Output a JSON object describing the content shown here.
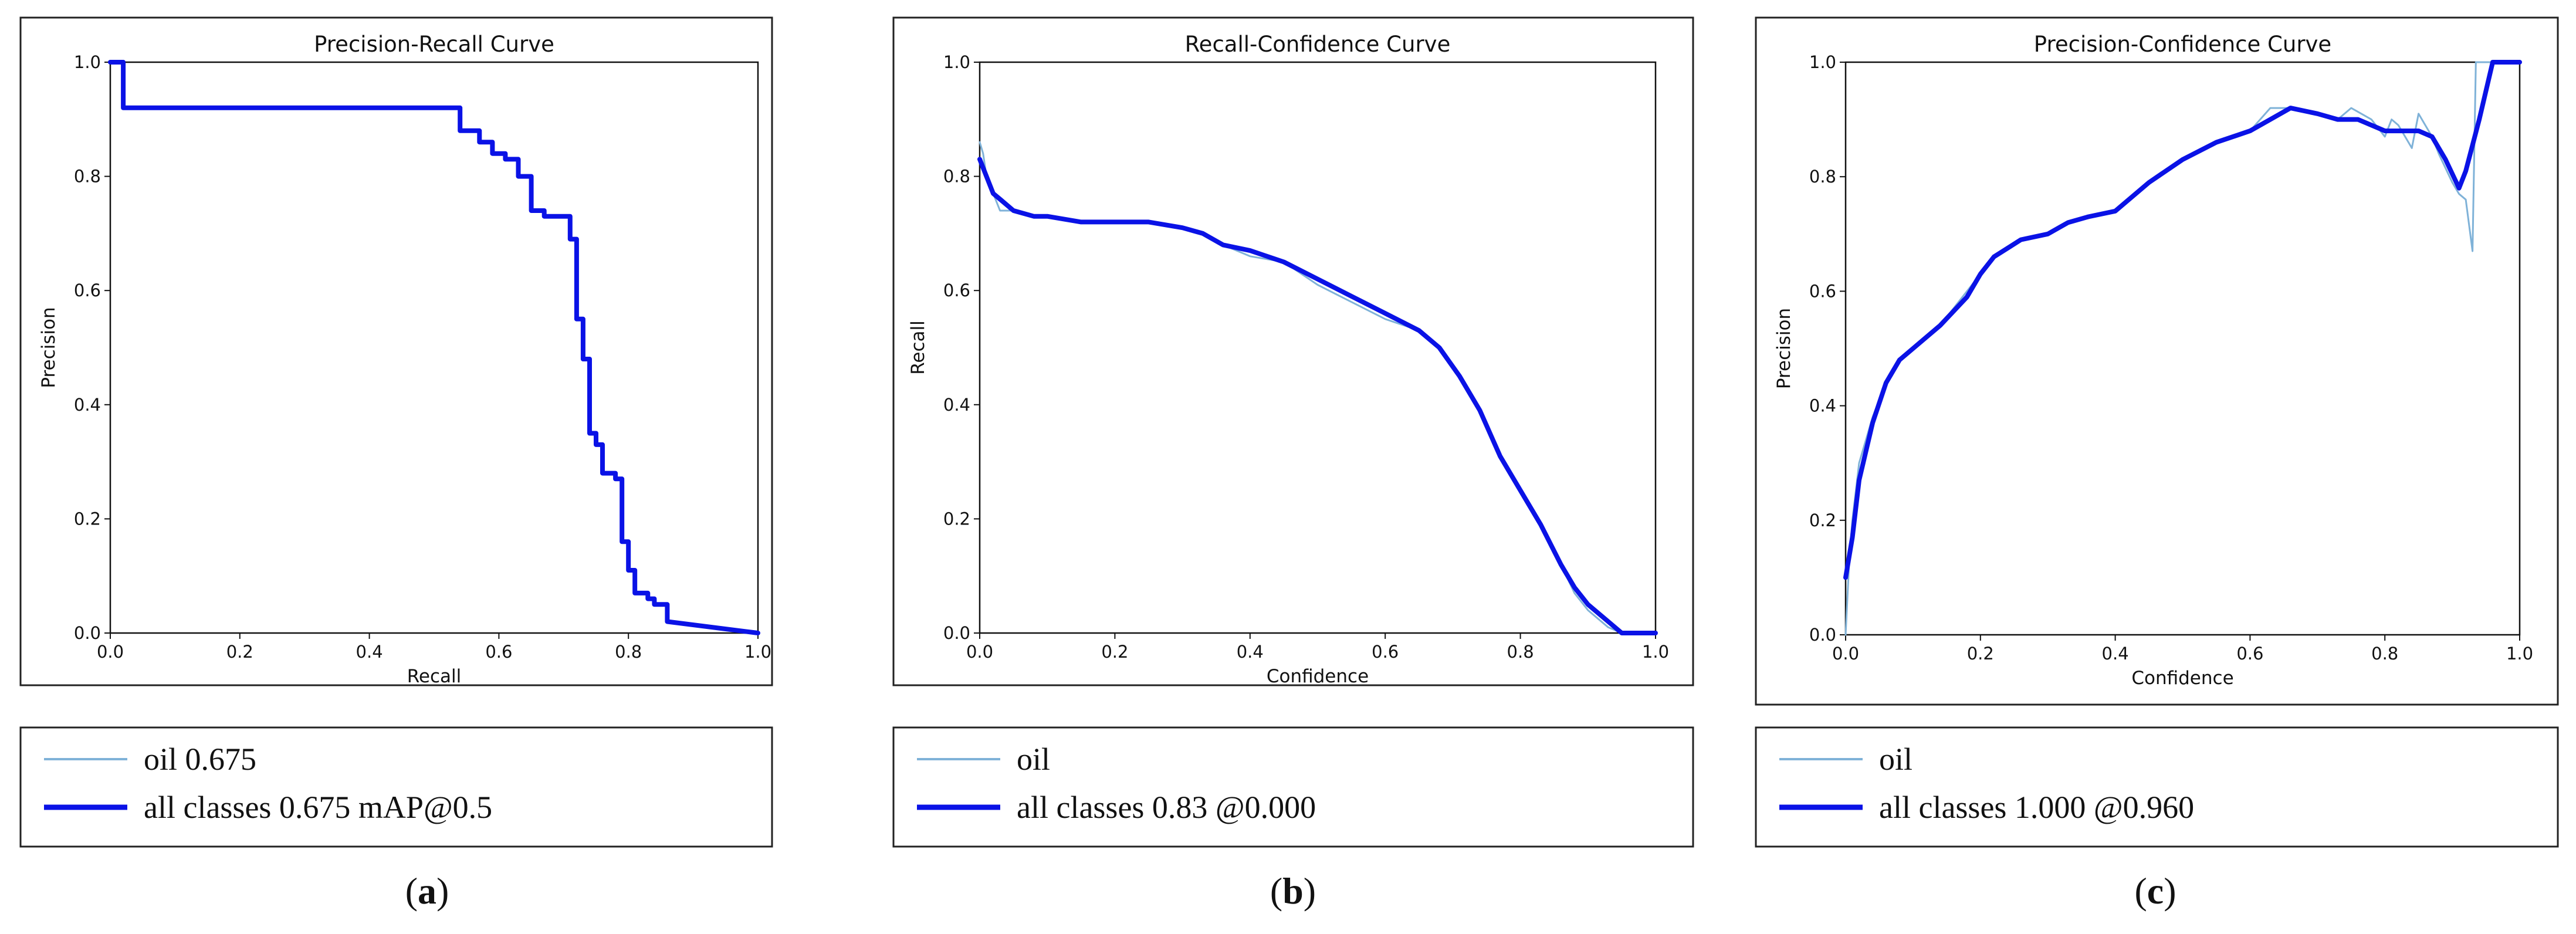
{
  "colors": {
    "oil": "#7fb2d8",
    "all_classes": "#0a12e6"
  },
  "chart_data": [
    {
      "type": "line",
      "title": "Precision-Recall Curve",
      "xlabel": "Recall",
      "ylabel": "Precision",
      "xlim": [
        0,
        1
      ],
      "ylim": [
        0,
        1
      ],
      "xticks": [
        "0.0",
        "0.2",
        "0.4",
        "0.6",
        "0.8",
        "1.0"
      ],
      "yticks": [
        "0.0",
        "0.2",
        "0.4",
        "0.6",
        "0.8",
        "1.0"
      ],
      "grid": false,
      "legend_placement": "below",
      "caption": "a",
      "series": [
        {
          "name": "oil 0.675",
          "color": "#7fb2d8",
          "x": [
            0,
            0.02,
            0.02,
            0.02,
            0.54,
            0.54,
            0.57,
            0.57,
            0.59,
            0.59,
            0.61,
            0.61,
            0.63,
            0.63,
            0.65,
            0.65,
            0.67,
            0.67,
            0.71,
            0.71,
            0.72,
            0.72,
            0.73,
            0.73,
            0.74,
            0.74,
            0.75,
            0.75,
            0.76,
            0.76,
            0.78,
            0.78,
            0.79,
            0.79,
            0.8,
            0.8,
            0.81,
            0.81,
            0.83,
            0.83,
            0.84,
            0.84,
            0.86,
            0.86,
            1.0
          ],
          "y": [
            1.0,
            1.0,
            0.97,
            0.92,
            0.92,
            0.88,
            0.88,
            0.86,
            0.86,
            0.84,
            0.84,
            0.83,
            0.83,
            0.8,
            0.8,
            0.74,
            0.74,
            0.73,
            0.73,
            0.69,
            0.69,
            0.55,
            0.55,
            0.48,
            0.48,
            0.35,
            0.35,
            0.33,
            0.33,
            0.28,
            0.28,
            0.27,
            0.27,
            0.16,
            0.16,
            0.11,
            0.11,
            0.07,
            0.07,
            0.06,
            0.06,
            0.05,
            0.05,
            0.02,
            0.0
          ]
        },
        {
          "name": "all classes 0.675 mAP@0.5",
          "color": "#0a12e6",
          "x": [
            0,
            0.02,
            0.02,
            0.02,
            0.54,
            0.54,
            0.57,
            0.57,
            0.59,
            0.59,
            0.61,
            0.61,
            0.63,
            0.63,
            0.65,
            0.65,
            0.67,
            0.67,
            0.71,
            0.71,
            0.72,
            0.72,
            0.73,
            0.73,
            0.74,
            0.74,
            0.75,
            0.75,
            0.76,
            0.76,
            0.78,
            0.78,
            0.79,
            0.79,
            0.8,
            0.8,
            0.81,
            0.81,
            0.83,
            0.83,
            0.84,
            0.84,
            0.86,
            0.86,
            1.0
          ],
          "y": [
            1.0,
            1.0,
            0.97,
            0.92,
            0.92,
            0.88,
            0.88,
            0.86,
            0.86,
            0.84,
            0.84,
            0.83,
            0.83,
            0.8,
            0.8,
            0.74,
            0.74,
            0.73,
            0.73,
            0.69,
            0.69,
            0.55,
            0.55,
            0.48,
            0.48,
            0.35,
            0.35,
            0.33,
            0.33,
            0.28,
            0.28,
            0.27,
            0.27,
            0.16,
            0.16,
            0.11,
            0.11,
            0.07,
            0.07,
            0.06,
            0.06,
            0.05,
            0.05,
            0.02,
            0.0
          ]
        }
      ]
    },
    {
      "type": "line",
      "title": "Recall-Confidence Curve",
      "xlabel": "Confidence",
      "ylabel": "Recall",
      "xlim": [
        0,
        1
      ],
      "ylim": [
        0,
        1
      ],
      "xticks": [
        "0.0",
        "0.2",
        "0.4",
        "0.6",
        "0.8",
        "1.0"
      ],
      "yticks": [
        "0.0",
        "0.2",
        "0.4",
        "0.6",
        "0.8",
        "1.0"
      ],
      "grid": false,
      "legend_placement": "below",
      "caption": "b",
      "series": [
        {
          "name": "oil",
          "color": "#7fb2d8",
          "x": [
            0.0,
            0.005,
            0.01,
            0.02,
            0.03,
            0.05,
            0.08,
            0.1,
            0.15,
            0.2,
            0.25,
            0.3,
            0.33,
            0.36,
            0.4,
            0.45,
            0.5,
            0.55,
            0.6,
            0.65,
            0.68,
            0.71,
            0.74,
            0.77,
            0.8,
            0.83,
            0.86,
            0.88,
            0.9,
            0.93,
            0.95,
            0.97,
            1.0
          ],
          "y": [
            0.86,
            0.84,
            0.8,
            0.77,
            0.74,
            0.74,
            0.73,
            0.73,
            0.72,
            0.72,
            0.72,
            0.71,
            0.7,
            0.68,
            0.66,
            0.65,
            0.61,
            0.58,
            0.55,
            0.53,
            0.5,
            0.45,
            0.39,
            0.31,
            0.25,
            0.19,
            0.12,
            0.07,
            0.04,
            0.01,
            0.0,
            0.0,
            0.0
          ]
        },
        {
          "name": "all classes 0.83 @0.000",
          "color": "#0a12e6",
          "x": [
            0.0,
            0.01,
            0.02,
            0.03,
            0.05,
            0.08,
            0.1,
            0.15,
            0.2,
            0.25,
            0.3,
            0.33,
            0.36,
            0.4,
            0.45,
            0.5,
            0.55,
            0.6,
            0.65,
            0.68,
            0.71,
            0.74,
            0.77,
            0.8,
            0.83,
            0.86,
            0.88,
            0.9,
            0.93,
            0.95,
            0.97,
            1.0
          ],
          "y": [
            0.83,
            0.8,
            0.77,
            0.76,
            0.74,
            0.73,
            0.73,
            0.72,
            0.72,
            0.72,
            0.71,
            0.7,
            0.68,
            0.67,
            0.65,
            0.62,
            0.59,
            0.56,
            0.53,
            0.5,
            0.45,
            0.39,
            0.31,
            0.25,
            0.19,
            0.12,
            0.08,
            0.05,
            0.02,
            0.0,
            0.0,
            0.0
          ]
        }
      ]
    },
    {
      "type": "line",
      "title": "Precision-Confidence Curve",
      "xlabel": "Confidence",
      "ylabel": "Precision",
      "xlim": [
        0,
        1
      ],
      "ylim": [
        0,
        1
      ],
      "xticks": [
        "0.0",
        "0.2",
        "0.4",
        "0.6",
        "0.8",
        "1.0"
      ],
      "yticks": [
        "0.0",
        "0.2",
        "0.4",
        "0.6",
        "0.8",
        "1.0"
      ],
      "grid": false,
      "legend_placement": "below",
      "caption": "c",
      "series": [
        {
          "name": "oil",
          "color": "#7fb2d8",
          "x": [
            0.0,
            0.005,
            0.01,
            0.02,
            0.04,
            0.06,
            0.08,
            0.1,
            0.14,
            0.18,
            0.2,
            0.22,
            0.26,
            0.3,
            0.33,
            0.36,
            0.4,
            0.45,
            0.5,
            0.55,
            0.6,
            0.63,
            0.66,
            0.7,
            0.73,
            0.75,
            0.78,
            0.8,
            0.81,
            0.82,
            0.84,
            0.85,
            0.86,
            0.87,
            0.88,
            0.9,
            0.91,
            0.92,
            0.93,
            0.935,
            0.94,
            0.96,
            1.0
          ],
          "y": [
            0.0,
            0.12,
            0.2,
            0.3,
            0.38,
            0.44,
            0.48,
            0.5,
            0.54,
            0.6,
            0.63,
            0.66,
            0.69,
            0.7,
            0.72,
            0.73,
            0.74,
            0.79,
            0.83,
            0.86,
            0.88,
            0.92,
            0.92,
            0.91,
            0.9,
            0.92,
            0.9,
            0.87,
            0.9,
            0.89,
            0.85,
            0.91,
            0.89,
            0.87,
            0.84,
            0.79,
            0.77,
            0.76,
            0.67,
            1.0,
            1.0,
            1.0,
            1.0
          ]
        },
        {
          "name": "all classes 1.000 @0.960",
          "color": "#0a12e6",
          "x": [
            0.0,
            0.01,
            0.02,
            0.04,
            0.06,
            0.08,
            0.1,
            0.14,
            0.18,
            0.2,
            0.22,
            0.26,
            0.3,
            0.33,
            0.36,
            0.4,
            0.45,
            0.5,
            0.55,
            0.6,
            0.63,
            0.66,
            0.7,
            0.73,
            0.76,
            0.8,
            0.83,
            0.85,
            0.87,
            0.89,
            0.91,
            0.92,
            0.94,
            0.96,
            1.0
          ],
          "y": [
            0.1,
            0.17,
            0.27,
            0.37,
            0.44,
            0.48,
            0.5,
            0.54,
            0.59,
            0.63,
            0.66,
            0.69,
            0.7,
            0.72,
            0.73,
            0.74,
            0.79,
            0.83,
            0.86,
            0.88,
            0.9,
            0.92,
            0.91,
            0.9,
            0.9,
            0.88,
            0.88,
            0.88,
            0.87,
            0.83,
            0.78,
            0.81,
            0.9,
            1.0,
            1.0
          ]
        }
      ]
    }
  ]
}
